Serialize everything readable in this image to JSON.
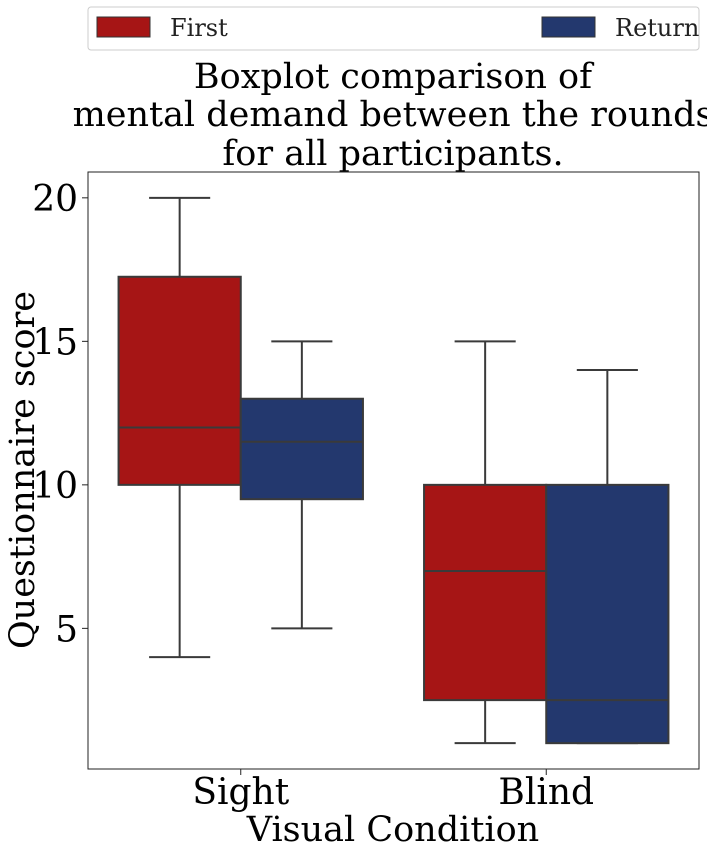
{
  "chart_data": {
    "type": "boxplot",
    "title": [
      "Boxplot comparison of",
      "mental demand between the rounds",
      "for all participants."
    ],
    "xlabel": "Visual Condition",
    "ylabel": "Questionnaire score",
    "categories": [
      "Sight",
      "Blind"
    ],
    "ylim": [
      0.1,
      20.9
    ],
    "yticks": [
      5,
      10,
      15,
      20
    ],
    "ytick_labels": [
      "5",
      "10",
      "15",
      "20"
    ],
    "grid": false,
    "legend": {
      "placement": "top-outside",
      "entries": [
        "First",
        "Return"
      ]
    },
    "series": [
      {
        "name": "First",
        "color": "#a61515",
        "boxes": [
          {
            "whisker_low": 4,
            "q1": 10,
            "median": 12,
            "q3": 17.25,
            "whisker_high": 20
          },
          {
            "whisker_low": 1,
            "q1": 2.5,
            "median": 7,
            "q3": 10,
            "whisker_high": 15
          }
        ]
      },
      {
        "name": "Return",
        "color": "#23386e",
        "boxes": [
          {
            "whisker_low": 5,
            "q1": 9.5,
            "median": 11.5,
            "q3": 13,
            "whisker_high": 15
          },
          {
            "whisker_low": 1,
            "q1": 1,
            "median": 2.5,
            "q3": 10,
            "whisker_high": 14
          }
        ]
      }
    ]
  }
}
